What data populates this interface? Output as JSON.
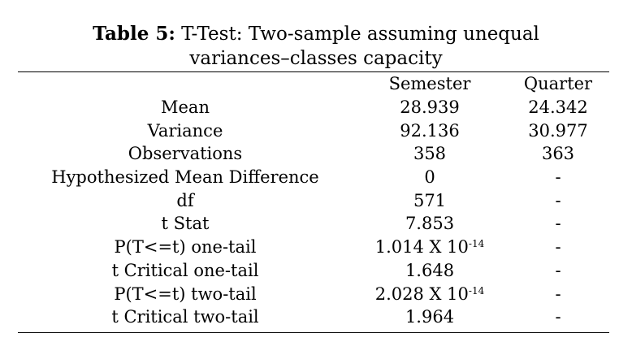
{
  "caption": {
    "label": "Table 5:",
    "title_line1": "T-Test: Two-sample assuming unequal",
    "title_line2": "variances–classes capacity"
  },
  "table": {
    "columns": [
      "",
      "Semester",
      "Quarter"
    ],
    "rows": [
      {
        "label": "Mean",
        "semester": "28.939",
        "quarter": "24.342"
      },
      {
        "label": "Variance",
        "semester": "92.136",
        "quarter": "30.977"
      },
      {
        "label": "Observations",
        "semester": "358",
        "quarter": "363"
      },
      {
        "label": "Hypothesized Mean Difference",
        "semester": "0",
        "quarter": "-"
      },
      {
        "label": "df",
        "semester": "571",
        "quarter": "-"
      },
      {
        "label": "t Stat",
        "semester": "7.853",
        "quarter": "-"
      },
      {
        "label": "P(T<=t) one-tail",
        "semester_base": "1.014 X 10",
        "semester_exp": "-14",
        "quarter": "-"
      },
      {
        "label": "t Critical one-tail",
        "semester": "1.648",
        "quarter": "-"
      },
      {
        "label": "P(T<=t) two-tail",
        "semester_base": "2.028 X 10",
        "semester_exp": "-14",
        "quarter": "-"
      },
      {
        "label": "t Critical two-tail",
        "semester": "1.964",
        "quarter": "-"
      }
    ]
  }
}
